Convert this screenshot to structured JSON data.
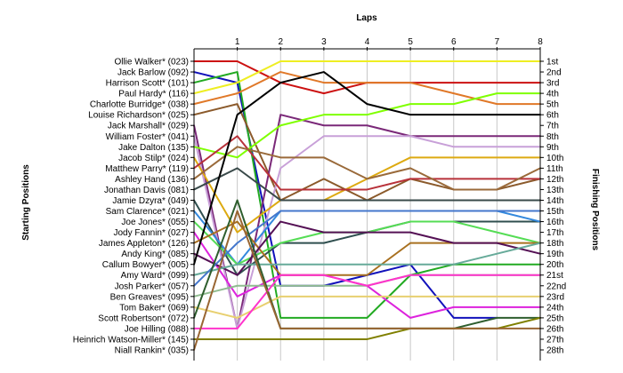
{
  "chart_data": {
    "type": "line",
    "xlabel": "Laps",
    "left_axis_title": "Starting Positions",
    "right_axis_title": "Finishing Positions",
    "x": [
      0,
      1,
      2,
      3,
      4,
      5,
      6,
      7,
      8
    ],
    "x_tick_labels": [
      "1",
      "2",
      "3",
      "4",
      "5",
      "6",
      "7",
      "8"
    ],
    "y_range": [
      1,
      28
    ],
    "y_direction": "position 1 at top",
    "finishing_labels": [
      "1st",
      "2nd",
      "3rd",
      "4th",
      "5th",
      "6th",
      "7th",
      "8th",
      "9th",
      "10th",
      "11th",
      "12th",
      "13th",
      "14th",
      "15th",
      "16th",
      "17th",
      "18th",
      "19th",
      "20th",
      "21st",
      "22nd",
      "23rd",
      "24th",
      "25th",
      "26th",
      "27th",
      "28th"
    ],
    "series": [
      {
        "name": "Ollie Walker* (023)",
        "color": "#cc1111",
        "positions": [
          1,
          1,
          3,
          4,
          3,
          3,
          3,
          3,
          3
        ]
      },
      {
        "name": "Jack Barlow (092)",
        "color": "#1111bb",
        "positions": [
          2,
          3,
          22,
          22,
          21,
          20,
          25,
          25,
          null
        ]
      },
      {
        "name": "Harrison Scott* (101)",
        "color": "#22aa22",
        "positions": [
          3,
          2,
          25,
          25,
          25,
          21,
          20,
          20,
          20
        ]
      },
      {
        "name": "Paul Hardy* (116)",
        "color": "#eeee22",
        "positions": [
          4,
          3,
          1,
          1,
          1,
          1,
          1,
          1,
          1
        ]
      },
      {
        "name": "Charlotte Burridge* (038)",
        "color": "#e07828",
        "positions": [
          5,
          4,
          2,
          3,
          3,
          3,
          4,
          5,
          5
        ]
      },
      {
        "name": "Louise Richardson* (025)",
        "color": "#8b5a2b",
        "positions": [
          6,
          5,
          14,
          12,
          14,
          12,
          13,
          13,
          12
        ]
      },
      {
        "name": "Jack Marshall* (029)",
        "color": "#7a2878",
        "positions": [
          7,
          26,
          6,
          7,
          7,
          8,
          8,
          8,
          8
        ]
      },
      {
        "name": "William Foster* (041)",
        "color": "#c8a0d8",
        "positions": [
          8,
          26,
          11,
          8,
          8,
          8,
          9,
          9,
          9
        ]
      },
      {
        "name": "Jake Dalton (135)",
        "color": "#7fff00",
        "positions": [
          9,
          10,
          7,
          6,
          6,
          5,
          5,
          4,
          4
        ]
      },
      {
        "name": "Jacob Stilp* (024)",
        "color": "#ddaa11",
        "positions": [
          10,
          17,
          14,
          14,
          12,
          10,
          10,
          10,
          10
        ]
      },
      {
        "name": "Matthew Parry* (119)",
        "color": "#b8323a",
        "positions": [
          11,
          8,
          13,
          13,
          13,
          12,
          12,
          12,
          12
        ]
      },
      {
        "name": "Ashley Hand (136)",
        "color": "#9a6a3a",
        "positions": [
          12,
          9,
          10,
          10,
          12,
          11,
          13,
          13,
          11
        ]
      },
      {
        "name": "Jonathan Davis (081)",
        "color": "#3a4a4a",
        "positions": [
          13,
          11,
          14,
          14,
          14,
          14,
          14,
          14,
          14
        ]
      },
      {
        "name": "Jamie Dzyra* (049)",
        "color": "#2f4f4f",
        "positions": [
          14,
          21,
          18,
          18,
          17,
          16,
          16,
          16,
          16
        ]
      },
      {
        "name": "Sam Clarence* (021)",
        "color": "#3388dd",
        "positions": [
          15,
          20,
          15,
          15,
          15,
          15,
          15,
          15,
          16
        ]
      },
      {
        "name": "Joe Jones* (055)",
        "color": "#55dd55",
        "positions": [
          16,
          20,
          18,
          17,
          17,
          16,
          16,
          17,
          18
        ]
      },
      {
        "name": "Jody Fannin* (027)",
        "color": "#dd22dd",
        "positions": [
          17,
          23,
          21,
          21,
          22,
          25,
          24,
          24,
          24
        ]
      },
      {
        "name": "James Appleton* (126)",
        "color": "#a87020",
        "positions": [
          18,
          16,
          21,
          21,
          21,
          18,
          18,
          18,
          18
        ]
      },
      {
        "name": "Andy King* (085)",
        "color": "#551155",
        "positions": [
          19,
          21,
          16,
          17,
          17,
          17,
          18,
          18,
          19
        ]
      },
      {
        "name": "Callum Bowyer* (005)",
        "color": "#000000",
        "positions": [
          20,
          6,
          3,
          2,
          5,
          6,
          6,
          6,
          6
        ]
      },
      {
        "name": "Amy Ward* (099)",
        "color": "#66aa99",
        "positions": [
          21,
          20,
          20,
          20,
          20,
          20,
          20,
          19,
          18
        ]
      },
      {
        "name": "Josh Parker* (057)",
        "color": "#4477cc",
        "positions": [
          22,
          18,
          15,
          15,
          15,
          15,
          15,
          15,
          15
        ]
      },
      {
        "name": "Ben Greaves* (095)",
        "color": "#8fbc8f",
        "positions": [
          23,
          22,
          22,
          22,
          22,
          21,
          21,
          21,
          21
        ]
      },
      {
        "name": "Tom Baker* (069)",
        "color": "#e8d070",
        "positions": [
          24,
          25,
          23,
          23,
          23,
          23,
          23,
          23,
          23
        ]
      },
      {
        "name": "Scott Robertson* (072)",
        "color": "#2e5e2e",
        "positions": [
          25,
          14,
          26,
          26,
          26,
          26,
          26,
          25,
          25
        ]
      },
      {
        "name": "Joe Hilling (088)",
        "color": "#ff33cc",
        "positions": [
          26,
          26,
          21,
          21,
          22,
          21,
          21,
          21,
          21
        ]
      },
      {
        "name": "Heinrich Watson-Miller* (145)",
        "color": "#808000",
        "positions": [
          27,
          27,
          27,
          27,
          27,
          26,
          26,
          26,
          25
        ]
      },
      {
        "name": "Niall Rankin* (035)",
        "color": "#996633",
        "positions": [
          28,
          15,
          26,
          26,
          26,
          26,
          26,
          26,
          26
        ]
      }
    ]
  }
}
